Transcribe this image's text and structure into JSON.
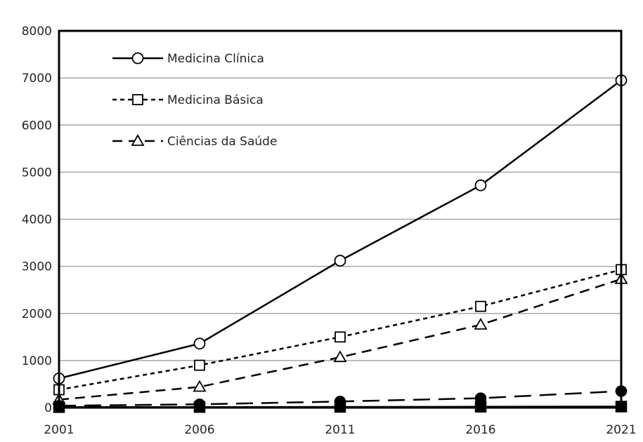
{
  "chart_data": {
    "type": "line",
    "title": "",
    "xlabel": "",
    "ylabel": "",
    "x": [
      2001,
      2006,
      2011,
      2016,
      2021
    ],
    "xticks": [
      "2001",
      "2006",
      "2011",
      "2016",
      "2021"
    ],
    "yticks": [
      "0",
      "1000",
      "2000",
      "3000",
      "4000",
      "5000",
      "6000",
      "7000",
      "8000"
    ],
    "ylim": [
      0,
      8000
    ],
    "grid": "horizontal",
    "legend_position": "top-left",
    "series": [
      {
        "name": "Medicina Clínica",
        "values": [
          620,
          1360,
          3120,
          4720,
          6950
        ],
        "style": "solid",
        "marker": "open-circle"
      },
      {
        "name": "Medicina Básica",
        "values": [
          380,
          900,
          1500,
          2150,
          2930
        ],
        "style": "dotted",
        "marker": "open-square"
      },
      {
        "name": "Ciências da Saúde",
        "values": [
          170,
          440,
          1070,
          1760,
          2730
        ],
        "style": "dashed",
        "marker": "open-triangle"
      },
      {
        "values": [
          40,
          70,
          130,
          200,
          350
        ],
        "style": "long-dashed",
        "marker": "filled-circle"
      },
      {
        "values": [
          10,
          12,
          15,
          18,
          22
        ],
        "style": "solid",
        "marker": "filled-square"
      }
    ]
  }
}
